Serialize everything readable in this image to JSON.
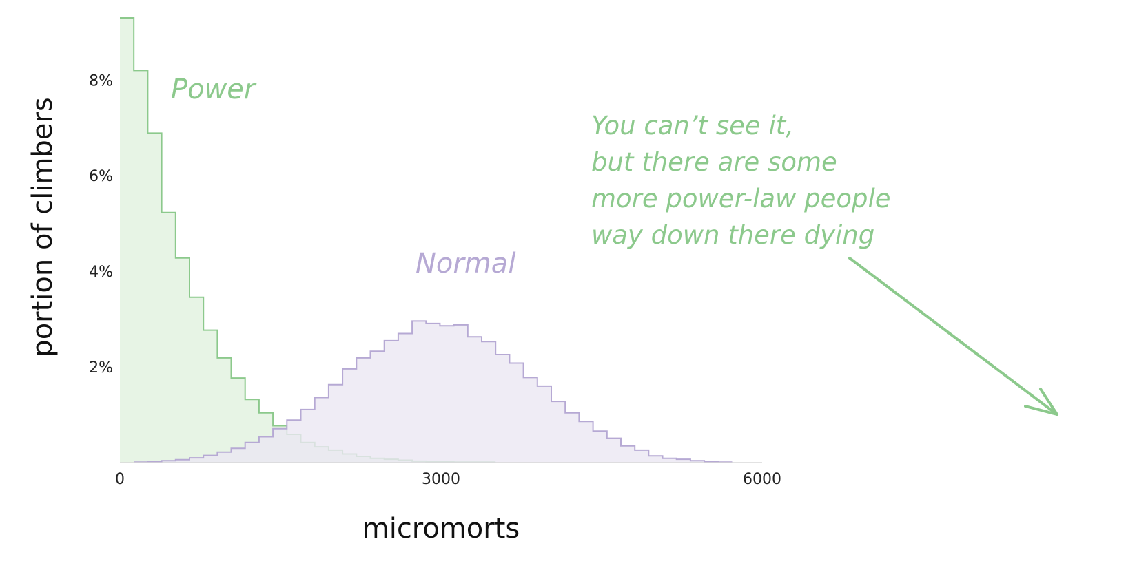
{
  "chart_data": {
    "type": "area",
    "title": "",
    "xlabel": "micromorts",
    "ylabel": "portion of climbers",
    "xlim": [
      0,
      6000
    ],
    "ylim": [
      0,
      0.093
    ],
    "x_ticks": [
      {
        "value": 0,
        "label": "0"
      },
      {
        "value": 3000,
        "label": "3000"
      },
      {
        "value": 6000,
        "label": "6000"
      }
    ],
    "y_ticks": [
      {
        "value": 0.02,
        "label": "2%"
      },
      {
        "value": 0.04,
        "label": "4%"
      },
      {
        "value": 0.06,
        "label": "6%"
      },
      {
        "value": 0.08,
        "label": "8%"
      }
    ],
    "grid": false,
    "legend": "none",
    "bin_edges": [
      0,
      130,
      260,
      390,
      520,
      650,
      780,
      910,
      1040,
      1170,
      1300,
      1430,
      1560,
      1690,
      1820,
      1950,
      2080,
      2210,
      2340,
      2470,
      2600,
      2730,
      2860,
      2990,
      3120,
      3250,
      3380,
      3510,
      3640,
      3770,
      3900,
      4030,
      4160,
      4290,
      4420,
      4550,
      4680,
      4810,
      4940,
      5070,
      5200,
      5330,
      5460,
      5590,
      5720,
      5850,
      5980
    ],
    "series": [
      {
        "name": "Power",
        "color": "#8cc98c",
        "fill": "#e1f1df",
        "values": [
          0.093,
          0.082,
          0.0689,
          0.0523,
          0.0428,
          0.0346,
          0.0277,
          0.0219,
          0.0177,
          0.0132,
          0.0104,
          0.0077,
          0.0059,
          0.0042,
          0.0033,
          0.0026,
          0.0018,
          0.0013,
          0.0009,
          0.0007,
          0.0005,
          0.0003,
          0.0002,
          0.0002,
          0.0001,
          0.0001,
          0.0001,
          0,
          0,
          0,
          0,
          0,
          0,
          0,
          0,
          0,
          0,
          0,
          0,
          0,
          0,
          0,
          0,
          0,
          0,
          0
        ]
      },
      {
        "name": "Normal",
        "color": "#b6a9d4",
        "fill": "#ebe7f3",
        "values": [
          0,
          0.0001,
          0.0002,
          0.0004,
          0.0006,
          0.001,
          0.0015,
          0.0022,
          0.003,
          0.0042,
          0.0054,
          0.0071,
          0.0089,
          0.0111,
          0.0136,
          0.0163,
          0.0196,
          0.0219,
          0.0233,
          0.0255,
          0.027,
          0.0296,
          0.0291,
          0.0286,
          0.0288,
          0.0263,
          0.0253,
          0.0226,
          0.0208,
          0.0178,
          0.016,
          0.0128,
          0.0104,
          0.0086,
          0.0066,
          0.0051,
          0.0035,
          0.0026,
          0.0014,
          0.0009,
          0.0007,
          0.0004,
          0.0002,
          0.0001,
          0,
          0
        ]
      }
    ],
    "annotation": {
      "lines": [
        "You can’t see it,",
        "but there are some",
        "more power-law people",
        "way down there dying"
      ],
      "color": "#8cc98c"
    }
  }
}
